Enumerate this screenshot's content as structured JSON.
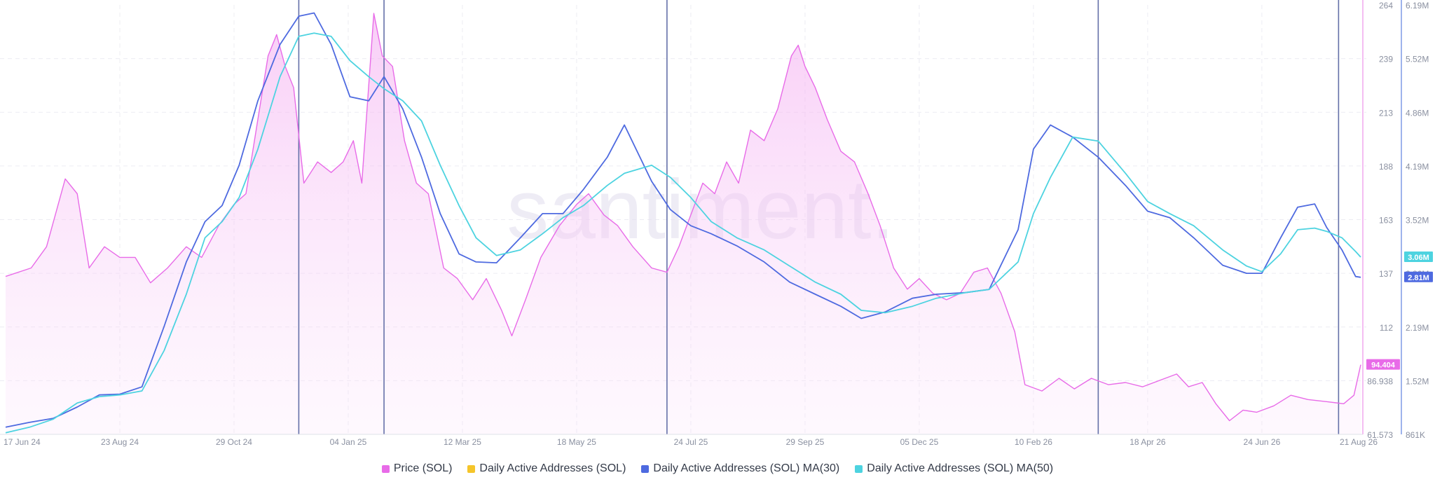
{
  "chart_data": {
    "type": "line",
    "watermark": "santiment.",
    "x_ticks": [
      "17 Jun 24",
      "23 Aug 24",
      "29 Oct 24",
      "04 Jan 25",
      "12 Mar 25",
      "18 May 25",
      "24 Jul 25",
      "29 Sep 25",
      "05 Dec 25",
      "10 Feb 26",
      "18 Apr 26",
      "24 Jun 26",
      "21 Aug 26"
    ],
    "y_left": {
      "ticks": [
        "264",
        "239",
        "213",
        "188",
        "163",
        "137",
        "112",
        "86.938",
        "61.573"
      ],
      "range": [
        61.573,
        264
      ]
    },
    "y_right": {
      "ticks": [
        "6.19M",
        "5.52M",
        "4.86M",
        "4.19M",
        "3.52M",
        "2.86M",
        "2.19M",
        "1.52M",
        "861K"
      ],
      "range": [
        861000,
        6190000
      ]
    },
    "current_labels": {
      "price": "94.404",
      "ma50": "3.06M",
      "ma30": "2.81M"
    },
    "event_lines": [
      "06 Dec 24",
      "25 Jan 25",
      "10 Jul 25",
      "20 Mar 26",
      "08 Aug 26"
    ],
    "series": [
      {
        "name": "Price (SOL)",
        "axis": "left",
        "color": "#e86be8",
        "points": [
          [
            "17 Jun 24",
            136
          ],
          [
            "02 Jul 24",
            140
          ],
          [
            "11 Jul 24",
            150
          ],
          [
            "22 Jul 24",
            182
          ],
          [
            "29 Jul 24",
            175
          ],
          [
            "05 Aug 24",
            140
          ],
          [
            "14 Aug 24",
            150
          ],
          [
            "23 Aug 24",
            145
          ],
          [
            "01 Sep 24",
            145
          ],
          [
            "10 Sep 24",
            133
          ],
          [
            "20 Sep 24",
            140
          ],
          [
            "01 Oct 24",
            150
          ],
          [
            "10 Oct 24",
            145
          ],
          [
            "20 Oct 24",
            160
          ],
          [
            "29 Oct 24",
            170
          ],
          [
            "05 Nov 24",
            175
          ],
          [
            "12 Nov 24",
            210
          ],
          [
            "18 Nov 24",
            240
          ],
          [
            "23 Nov 24",
            250
          ],
          [
            "28 Nov 24",
            235
          ],
          [
            "03 Dec 24",
            225
          ],
          [
            "09 Dec 24",
            180
          ],
          [
            "17 Dec 24",
            190
          ],
          [
            "25 Dec 24",
            185
          ],
          [
            "01 Jan 25",
            190
          ],
          [
            "07 Jan 25",
            200
          ],
          [
            "12 Jan 25",
            180
          ],
          [
            "19 Jan 25",
            260
          ],
          [
            "24 Jan 25",
            240
          ],
          [
            "30 Jan 25",
            235
          ],
          [
            "06 Feb 25",
            200
          ],
          [
            "13 Feb 25",
            180
          ],
          [
            "20 Feb 25",
            175
          ],
          [
            "01 Mar 25",
            140
          ],
          [
            "09 Mar 25",
            135
          ],
          [
            "18 Mar 25",
            125
          ],
          [
            "26 Mar 25",
            135
          ],
          [
            "04 Apr 25",
            120
          ],
          [
            "10 Apr 25",
            108
          ],
          [
            "18 Apr 25",
            125
          ],
          [
            "27 Apr 25",
            145
          ],
          [
            "08 May 25",
            160
          ],
          [
            "18 May 25",
            170
          ],
          [
            "25 May 25",
            175
          ],
          [
            "03 Jun 25",
            165
          ],
          [
            "11 Jun 25",
            160
          ],
          [
            "20 Jun 25",
            150
          ],
          [
            "01 Jul 25",
            140
          ],
          [
            "10 Jul 25",
            138
          ],
          [
            "17 Jul 25",
            150
          ],
          [
            "24 Jul 25",
            165
          ],
          [
            "31 Jul 25",
            180
          ],
          [
            "07 Aug 25",
            175
          ],
          [
            "14 Aug 25",
            190
          ],
          [
            "21 Aug 25",
            180
          ],
          [
            "28 Aug 25",
            205
          ],
          [
            "05 Sep 25",
            200
          ],
          [
            "13 Sep 25",
            215
          ],
          [
            "21 Sep 25",
            240
          ],
          [
            "25 Sep 25",
            245
          ],
          [
            "29 Sep 25",
            235
          ],
          [
            "05 Oct 25",
            225
          ],
          [
            "12 Oct 25",
            210
          ],
          [
            "20 Oct 25",
            195
          ],
          [
            "28 Oct 25",
            190
          ],
          [
            "05 Nov 25",
            175
          ],
          [
            "12 Nov 25",
            160
          ],
          [
            "20 Nov 25",
            140
          ],
          [
            "28 Nov 25",
            130
          ],
          [
            "05 Dec 25",
            135
          ],
          [
            "13 Dec 25",
            128
          ],
          [
            "21 Dec 25",
            125
          ],
          [
            "29 Dec 25",
            128
          ],
          [
            "06 Jan 26",
            138
          ],
          [
            "14 Jan 26",
            140
          ],
          [
            "22 Jan 26",
            128
          ],
          [
            "30 Jan 26",
            110
          ],
          [
            "05 Feb 26",
            85
          ],
          [
            "15 Feb 26",
            82
          ],
          [
            "25 Feb 26",
            88
          ],
          [
            "06 Mar 26",
            83
          ],
          [
            "16 Mar 26",
            88
          ],
          [
            "26 Mar 26",
            85
          ],
          [
            "05 Apr 26",
            86
          ],
          [
            "15 Apr 26",
            84
          ],
          [
            "25 Apr 26",
            87
          ],
          [
            "05 May 26",
            90
          ],
          [
            "12 May 26",
            84
          ],
          [
            "20 May 26",
            86
          ],
          [
            "28 May 26",
            76
          ],
          [
            "05 Jun 26",
            68
          ],
          [
            "13 Jun 26",
            73
          ],
          [
            "21 Jun 26",
            72
          ],
          [
            "01 Jul 26",
            75
          ],
          [
            "11 Jul 26",
            80
          ],
          [
            "21 Jul 26",
            78
          ],
          [
            "01 Aug 26",
            77
          ],
          [
            "11 Aug 26",
            76
          ],
          [
            "17 Aug 26",
            80
          ],
          [
            "21 Aug 26",
            94.404
          ]
        ]
      },
      {
        "name": "Daily Active Addresses (SOL)",
        "axis": "right",
        "color": "#f5c52a",
        "points": []
      },
      {
        "name": "Daily Active Addresses (SOL) MA(30)",
        "axis": "right",
        "color": "#4e6ae0",
        "points": [
          [
            "17 Jun 24",
            950000
          ],
          [
            "01 Jul 24",
            1010000
          ],
          [
            "15 Jul 24",
            1060000
          ],
          [
            "29 Jul 24",
            1200000
          ],
          [
            "11 Aug 24",
            1350000
          ],
          [
            "23 Aug 24",
            1360000
          ],
          [
            "05 Sep 24",
            1450000
          ],
          [
            "18 Sep 24",
            2200000
          ],
          [
            "01 Oct 24",
            3000000
          ],
          [
            "12 Oct 24",
            3500000
          ],
          [
            "22 Oct 24",
            3700000
          ],
          [
            "01 Nov 24",
            4200000
          ],
          [
            "12 Nov 24",
            5000000
          ],
          [
            "25 Nov 24",
            5700000
          ],
          [
            "06 Dec 24",
            6050000
          ],
          [
            "15 Dec 24",
            6090000
          ],
          [
            "25 Dec 24",
            5700000
          ],
          [
            "05 Jan 25",
            5050000
          ],
          [
            "16 Jan 25",
            5000000
          ],
          [
            "25 Jan 25",
            5300000
          ],
          [
            "05 Feb 25",
            4900000
          ],
          [
            "16 Feb 25",
            4300000
          ],
          [
            "27 Feb 25",
            3600000
          ],
          [
            "10 Mar 25",
            3100000
          ],
          [
            "20 Mar 25",
            3000000
          ],
          [
            "01 Apr 25",
            2990000
          ],
          [
            "15 Apr 25",
            3300000
          ],
          [
            "28 Apr 25",
            3600000
          ],
          [
            "10 May 25",
            3600000
          ],
          [
            "22 May 25",
            3900000
          ],
          [
            "05 Jun 25",
            4300000
          ],
          [
            "15 Jun 25",
            4700000
          ],
          [
            "01 Jul 25",
            4000000
          ],
          [
            "12 Jul 25",
            3650000
          ],
          [
            "24 Jul 25",
            3450000
          ],
          [
            "05 Aug 25",
            3350000
          ],
          [
            "20 Aug 25",
            3200000
          ],
          [
            "05 Sep 25",
            3000000
          ],
          [
            "20 Sep 25",
            2750000
          ],
          [
            "05 Oct 25",
            2600000
          ],
          [
            "20 Oct 25",
            2450000
          ],
          [
            "01 Nov 25",
            2300000
          ],
          [
            "15 Nov 25",
            2380000
          ],
          [
            "01 Dec 25",
            2550000
          ],
          [
            "15 Dec 25",
            2600000
          ],
          [
            "01 Jan 26",
            2620000
          ],
          [
            "15 Jan 26",
            2660000
          ],
          [
            "01 Feb 26",
            3400000
          ],
          [
            "10 Feb 26",
            4400000
          ],
          [
            "20 Feb 26",
            4700000
          ],
          [
            "05 Mar 26",
            4550000
          ],
          [
            "20 Mar 26",
            4300000
          ],
          [
            "05 Apr 26",
            3950000
          ],
          [
            "18 Apr 26",
            3630000
          ],
          [
            "01 May 26",
            3550000
          ],
          [
            "15 May 26",
            3300000
          ],
          [
            "01 Jun 26",
            2960000
          ],
          [
            "15 Jun 26",
            2860000
          ],
          [
            "24 Jun 26",
            2860000
          ],
          [
            "05 Jul 26",
            3300000
          ],
          [
            "15 Jul 26",
            3680000
          ],
          [
            "25 Jul 26",
            3720000
          ],
          [
            "01 Aug 26",
            3430000
          ],
          [
            "10 Aug 26",
            3150000
          ],
          [
            "18 Aug 26",
            2820000
          ],
          [
            "21 Aug 26",
            2810000
          ]
        ]
      },
      {
        "name": "Daily Active Addresses (SOL) MA(50)",
        "axis": "right",
        "color": "#4dd3e0",
        "points": [
          [
            "17 Jun 24",
            880000
          ],
          [
            "01 Jul 24",
            950000
          ],
          [
            "15 Jul 24",
            1050000
          ],
          [
            "29 Jul 24",
            1250000
          ],
          [
            "11 Aug 24",
            1330000
          ],
          [
            "23 Aug 24",
            1350000
          ],
          [
            "05 Sep 24",
            1400000
          ],
          [
            "18 Sep 24",
            1900000
          ],
          [
            "01 Oct 24",
            2600000
          ],
          [
            "12 Oct 24",
            3300000
          ],
          [
            "22 Oct 24",
            3500000
          ],
          [
            "01 Nov 24",
            3800000
          ],
          [
            "12 Nov 24",
            4400000
          ],
          [
            "25 Nov 24",
            5300000
          ],
          [
            "06 Dec 24",
            5800000
          ],
          [
            "15 Dec 24",
            5840000
          ],
          [
            "25 Dec 24",
            5800000
          ],
          [
            "05 Jan 25",
            5500000
          ],
          [
            "16 Jan 25",
            5300000
          ],
          [
            "25 Jan 25",
            5150000
          ],
          [
            "05 Feb 25",
            5000000
          ],
          [
            "16 Feb 25",
            4750000
          ],
          [
            "27 Feb 25",
            4200000
          ],
          [
            "10 Mar 25",
            3700000
          ],
          [
            "20 Mar 25",
            3300000
          ],
          [
            "01 Apr 25",
            3080000
          ],
          [
            "15 Apr 25",
            3150000
          ],
          [
            "28 Apr 25",
            3350000
          ],
          [
            "10 May 25",
            3550000
          ],
          [
            "22 May 25",
            3700000
          ],
          [
            "05 Jun 25",
            3950000
          ],
          [
            "15 Jun 25",
            4100000
          ],
          [
            "01 Jul 25",
            4200000
          ],
          [
            "12 Jul 25",
            4050000
          ],
          [
            "24 Jul 25",
            3800000
          ],
          [
            "05 Aug 25",
            3500000
          ],
          [
            "20 Aug 25",
            3300000
          ],
          [
            "05 Sep 25",
            3150000
          ],
          [
            "20 Sep 25",
            2950000
          ],
          [
            "05 Oct 25",
            2750000
          ],
          [
            "20 Oct 25",
            2600000
          ],
          [
            "01 Nov 25",
            2400000
          ],
          [
            "15 Nov 25",
            2370000
          ],
          [
            "01 Dec 25",
            2450000
          ],
          [
            "15 Dec 25",
            2550000
          ],
          [
            "01 Jan 26",
            2620000
          ],
          [
            "15 Jan 26",
            2660000
          ],
          [
            "01 Feb 26",
            3000000
          ],
          [
            "10 Feb 26",
            3600000
          ],
          [
            "20 Feb 26",
            4050000
          ],
          [
            "05 Mar 26",
            4550000
          ],
          [
            "20 Mar 26",
            4500000
          ],
          [
            "05 Apr 26",
            4100000
          ],
          [
            "18 Apr 26",
            3750000
          ],
          [
            "01 May 26",
            3600000
          ],
          [
            "15 May 26",
            3450000
          ],
          [
            "01 Jun 26",
            3150000
          ],
          [
            "15 Jun 26",
            2950000
          ],
          [
            "24 Jun 26",
            2880000
          ],
          [
            "05 Jul 26",
            3100000
          ],
          [
            "15 Jul 26",
            3400000
          ],
          [
            "25 Jul 26",
            3420000
          ],
          [
            "01 Aug 26",
            3380000
          ],
          [
            "10 Aug 26",
            3300000
          ],
          [
            "18 Aug 26",
            3130000
          ],
          [
            "21 Aug 26",
            3060000
          ]
        ]
      }
    ],
    "legend": {
      "placement": "bottom-center",
      "items": [
        {
          "label": "Price (SOL)",
          "color": "#e86be8"
        },
        {
          "label": "Daily Active Addresses (SOL)",
          "color": "#f5c52a"
        },
        {
          "label": "Daily Active Addresses (SOL) MA(30)",
          "color": "#4e6ae0"
        },
        {
          "label": "Daily Active Addresses (SOL) MA(50)",
          "color": "#4dd3e0"
        }
      ]
    },
    "grid": true
  }
}
